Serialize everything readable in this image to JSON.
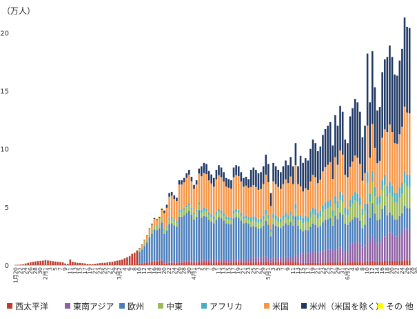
{
  "chart_data": {
    "type": "bar",
    "stacked": true,
    "title": "",
    "xlabel": "",
    "ylabel": "",
    "unit_label": "（万人）",
    "ylim": [
      0,
      21.5
    ],
    "yticks": [
      0,
      5,
      10,
      15,
      20
    ],
    "grid": false,
    "legend_position": "bottom",
    "x_tick_labels": [
      "1月20",
      "22",
      "24",
      "26",
      "28",
      "30",
      "2月1",
      "3",
      "5",
      "7",
      "9",
      "11",
      "13",
      "15",
      "17",
      "19",
      "21",
      "23",
      "25",
      "27",
      "29",
      "3月2",
      "4",
      "6",
      "8",
      "10",
      "12",
      "14",
      "16",
      "18",
      "20",
      "22",
      "24",
      "26",
      "28",
      "30",
      "4月1",
      "3",
      "5",
      "7",
      "9",
      "11",
      "13",
      "15",
      "17",
      "19",
      "21",
      "23",
      "25",
      "27",
      "29",
      "5月1",
      "3",
      "5",
      "7",
      "9",
      "11",
      "13",
      "15",
      "17",
      "19",
      "21",
      "23",
      "25",
      "27",
      "29",
      "31",
      "6月2",
      "4",
      "6",
      "8",
      "10",
      "12",
      "14",
      "16",
      "18",
      "20",
      "22",
      "24",
      "26",
      "28",
      "30",
      "7月2",
      "4",
      "6"
    ],
    "series": [
      {
        "name": "西太平洋",
        "color": "#c0392b"
      },
      {
        "name": "東南アジア",
        "color": "#8e5fa3"
      },
      {
        "name": "欧州",
        "color": "#4a7ebb"
      },
      {
        "name": "中東",
        "color": "#9bbb59"
      },
      {
        "name": "アフリカ",
        "color": "#4bacc6"
      },
      {
        "name": "米国",
        "color": "#f79646"
      },
      {
        "name": "米州（米国を除く）",
        "color": "#1f3864"
      },
      {
        "name": "その 他",
        "color": "#ffff00"
      }
    ],
    "totals": [
      0.02,
      0.03,
      0.05,
      0.08,
      0.15,
      0.2,
      0.25,
      0.3,
      0.33,
      0.36,
      0.38,
      0.4,
      0.45,
      0.42,
      0.38,
      0.35,
      0.32,
      0.3,
      0.28,
      0.25,
      0.15,
      0.12,
      0.5,
      0.3,
      0.25,
      0.2,
      0.2,
      0.18,
      0.15,
      0.12,
      0.1,
      0.1,
      0.12,
      0.15,
      0.18,
      0.2,
      0.2,
      0.25,
      0.28,
      0.3,
      0.35,
      0.4,
      0.45,
      0.5,
      0.6,
      0.7,
      0.8,
      1.0,
      1.1,
      1.3,
      1.5,
      1.8,
      2.2,
      2.6,
      3.2,
      3.6,
      4.1,
      4.0,
      4.2,
      4.9,
      4.7,
      5.2,
      6.2,
      6.3,
      6.0,
      5.8,
      7.3,
      7.3,
      7.5,
      7.9,
      8.2,
      7.6,
      6.9,
      7.3,
      8.3,
      8.5,
      8.8,
      8.7,
      8.1,
      7.8,
      7.5,
      8.2,
      8.6,
      8.4,
      8.0,
      7.5,
      7.4,
      7.3,
      8.4,
      8.6,
      8.5,
      8.0,
      7.5,
      7.6,
      7.4,
      8.2,
      8.4,
      8.2,
      7.9,
      8.0,
      8.5,
      9.5,
      8.7,
      6.2,
      8.8,
      8.5,
      8.2,
      8.0,
      8.5,
      9.0,
      8.6,
      9.3,
      8.5,
      10.5,
      8.5,
      9.4,
      8.8,
      9.2,
      9.0,
      10.0,
      10.8,
      10.5,
      9.8,
      10.2,
      11.2,
      11.7,
      12.0,
      12.3,
      10.3,
      12.9,
      12.0,
      13.7,
      13.2,
      10.8,
      10.5,
      12.8,
      13.5,
      14.3,
      14.0,
      13.2,
      11.0,
      12.0,
      18.2,
      14.0,
      18.4,
      15.3,
      13.3,
      13.6,
      16.6,
      17.7,
      17.9,
      18.9,
      17.9,
      16.4,
      16.3,
      17.6,
      18.6,
      21.3,
      20.5,
      20.4
    ],
    "shares": [
      {
        "upto": 50,
        "values": [
          0.95,
          0.01,
          0.02,
          0.01,
          0.0,
          0.0,
          0.0,
          0.01
        ]
      },
      {
        "upto": 60,
        "values": [
          0.08,
          0.02,
          0.65,
          0.08,
          0.01,
          0.13,
          0.02,
          0.01
        ]
      },
      {
        "upto": 75,
        "values": [
          0.03,
          0.02,
          0.52,
          0.06,
          0.02,
          0.3,
          0.05,
          0.0
        ]
      },
      {
        "upto": 95,
        "values": [
          0.03,
          0.03,
          0.42,
          0.05,
          0.03,
          0.34,
          0.1,
          0.0
        ]
      },
      {
        "upto": 115,
        "values": [
          0.03,
          0.05,
          0.32,
          0.06,
          0.04,
          0.32,
          0.18,
          0.0
        ]
      },
      {
        "upto": 135,
        "values": [
          0.02,
          0.09,
          0.22,
          0.08,
          0.05,
          0.26,
          0.28,
          0.0
        ]
      },
      {
        "upto": 150,
        "values": [
          0.02,
          0.12,
          0.15,
          0.1,
          0.05,
          0.22,
          0.34,
          0.0
        ]
      },
      {
        "upto": 170,
        "values": [
          0.02,
          0.13,
          0.09,
          0.09,
          0.05,
          0.26,
          0.36,
          0.0
        ]
      }
    ]
  }
}
